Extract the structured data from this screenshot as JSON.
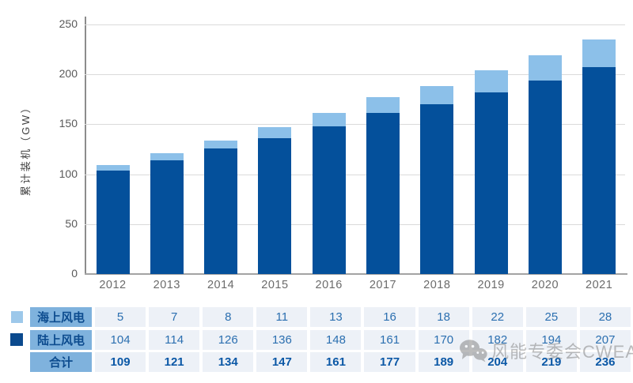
{
  "chart_data": {
    "type": "bar",
    "stacked": true,
    "title": "",
    "xlabel": "",
    "ylabel": "累计装机（GW）",
    "ylim": [
      0,
      250
    ],
    "yticks": [
      0,
      50,
      100,
      150,
      200,
      250
    ],
    "grid": true,
    "legend_position": "table-left",
    "categories": [
      "2012",
      "2013",
      "2014",
      "2015",
      "2016",
      "2017",
      "2018",
      "2019",
      "2020",
      "2021"
    ],
    "series": [
      {
        "name": "海上风电",
        "color": "#8CC0E9",
        "values": [
          5,
          7,
          8,
          11,
          13,
          16,
          18,
          22,
          25,
          28
        ]
      },
      {
        "name": "陆上风电",
        "color": "#04509B",
        "values": [
          104,
          114,
          126,
          136,
          148,
          161,
          170,
          182,
          194,
          207
        ]
      }
    ],
    "totals": {
      "label": "合计",
      "values": [
        109,
        121,
        134,
        147,
        161,
        177,
        189,
        204,
        219,
        236
      ]
    }
  },
  "watermark": {
    "icon": "wechat-icon",
    "text": "风能专委会CWEA"
  },
  "colors": {
    "offshore_bar": "#8CC0E9",
    "onshore_bar": "#04509B",
    "offshore_swatch": "#9DC8EA",
    "onshore_swatch": "#0B4A8E",
    "label_cell_bg": "#7FB2DD",
    "label_cell_text": "#0D4C8F",
    "value_cell_bg": "#EDF1F7",
    "value_text": "#2B6FB0",
    "total_text": "#0B58A6",
    "gridline": "#dadada",
    "axis_line": "#8c8c8c",
    "tick_text": "#595959",
    "watermark_text": "#878787"
  }
}
